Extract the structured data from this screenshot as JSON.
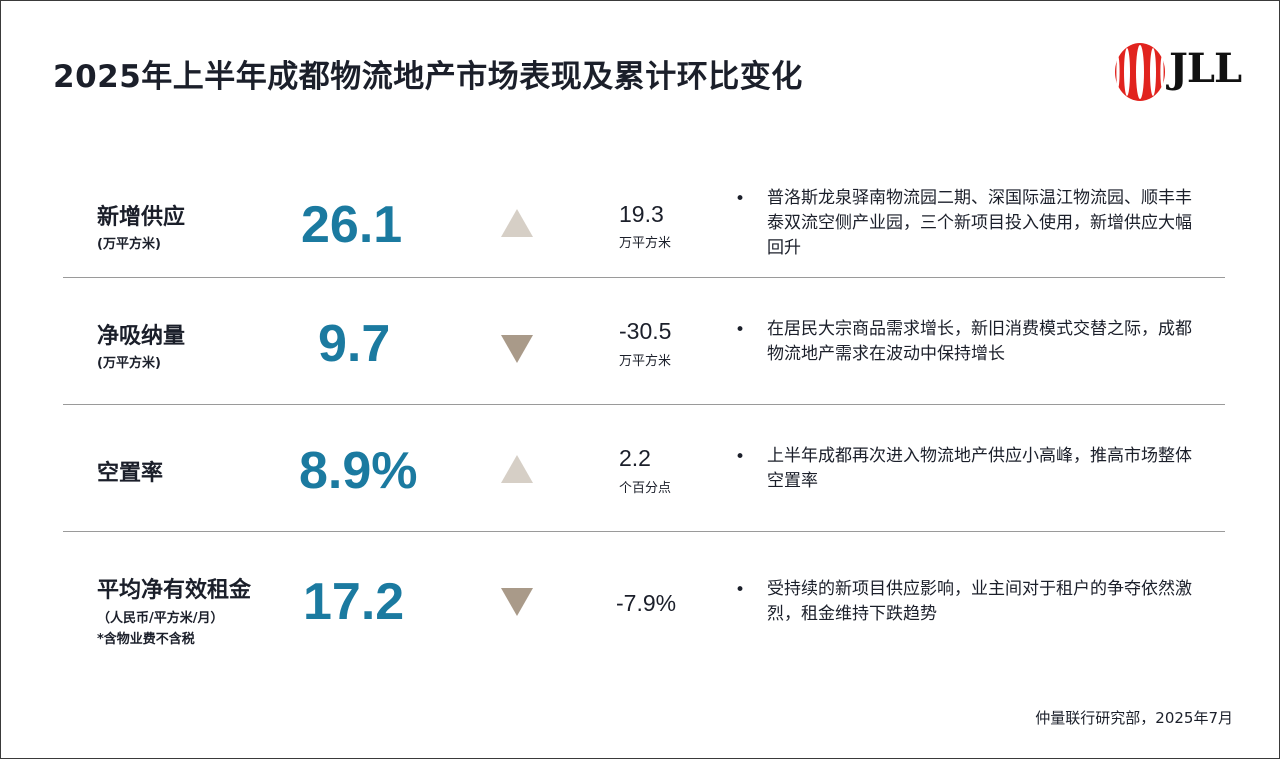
{
  "title": "2025年上半年成都物流地产市场表现及累计环比变化",
  "logo_text": "JLL",
  "colors": {
    "accent": "#1b7aa0",
    "up_triangle": "#d6cfc6",
    "down_triangle": "#a99a89"
  },
  "rows": [
    {
      "label": "新增供应",
      "sub": "(万平方米)",
      "note": "",
      "value": "26.1",
      "direction": "up",
      "change": "19.3",
      "change_unit": "万平方米",
      "bullet": "•",
      "desc": "普洛斯龙泉驿南物流园二期、深国际温江物流园、顺丰丰泰双流空侧产业园，三个新项目投入使用，新增供应大幅回升"
    },
    {
      "label": "净吸纳量",
      "sub": "(万平方米)",
      "note": "",
      "value": "9.7",
      "direction": "down",
      "change": "-30.5",
      "change_unit": "万平方米",
      "bullet": "•",
      "desc": "在居民大宗商品需求增长，新旧消费模式交替之际，成都物流地产需求在波动中保持增长"
    },
    {
      "label": "空置率",
      "sub": "",
      "note": "",
      "value": "8.9%",
      "direction": "up",
      "change": "2.2",
      "change_unit": "个百分点",
      "bullet": "•",
      "desc": "上半年成都再次进入物流地产供应小高峰，推高市场整体空置率"
    },
    {
      "label": "平均净有效租金",
      "sub": "（人民币/平方米/月）",
      "note": "*含物业费不含税",
      "value": "17.2",
      "direction": "down",
      "change": "-7.9%",
      "change_unit": "",
      "bullet": "•",
      "desc": "受持续的新项目供应影响，业主间对于租户的争夺依然激烈，租金维持下跌趋势"
    }
  ],
  "source": "仲量联行研究部，2025年7月"
}
